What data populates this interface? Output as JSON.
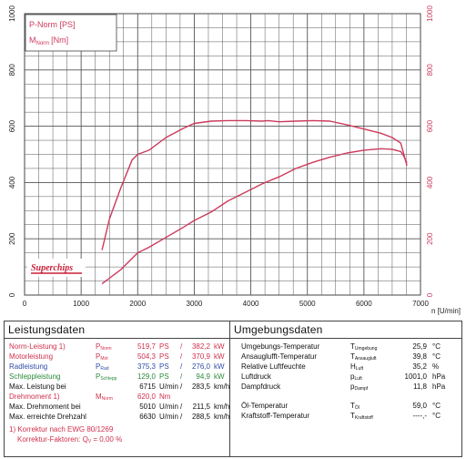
{
  "chart_data": {
    "type": "line",
    "x_unit_label": "n [U/min]",
    "xlim": [
      0,
      7000
    ],
    "x_ticks": [
      "0",
      "1000",
      "2000",
      "3000",
      "4000",
      "5000",
      "6000",
      "7000"
    ],
    "ylim_left": [
      0,
      1000
    ],
    "ylim_right": [
      0,
      1000
    ],
    "y_ticks_left": [
      "0",
      "200",
      "400",
      "600",
      "800",
      "1000"
    ],
    "y_ticks_right": [
      "0",
      "200",
      "400",
      "600",
      "800",
      "1000"
    ],
    "grid": true,
    "legend": {
      "position": "top-left",
      "items": [
        {
          "label": "P-Norm [PS]",
          "sub": ""
        },
        {
          "label": "M",
          "sub": "Norm",
          "unit": "[Nm]"
        }
      ]
    },
    "series": [
      {
        "name": "P-Norm [PS]",
        "color": "#cc3a5c",
        "axis": "left",
        "x": [
          1370,
          1500,
          1700,
          1900,
          2000,
          2200,
          2500,
          2800,
          3000,
          3300,
          3600,
          3900,
          4200,
          4500,
          4800,
          5100,
          5400,
          5700,
          6000,
          6300,
          6500,
          6650,
          6700,
          6760
        ],
        "y": [
          40,
          60,
          90,
          130,
          150,
          170,
          205,
          240,
          265,
          295,
          335,
          365,
          395,
          420,
          450,
          472,
          490,
          505,
          515,
          520,
          518,
          510,
          495,
          470
        ]
      },
      {
        "name": "M Norm [Nm]",
        "color": "#cc3a5c",
        "axis": "right",
        "x": [
          1370,
          1500,
          1700,
          1900,
          2000,
          2200,
          2500,
          2800,
          3000,
          3300,
          3600,
          3900,
          4200,
          4300,
          4500,
          4800,
          5100,
          5400,
          5700,
          6000,
          6300,
          6500,
          6650,
          6760
        ],
        "y": [
          160,
          270,
          380,
          480,
          500,
          515,
          560,
          592,
          610,
          618,
          620,
          620,
          618,
          620,
          616,
          618,
          620,
          618,
          605,
          590,
          575,
          560,
          540,
          460
        ]
      }
    ]
  },
  "logo_text": "Superchips",
  "leistungsdaten": {
    "title": "Leistungsdaten",
    "rows": [
      {
        "label": "Norm-Leistung",
        "note": "1)",
        "sym": "P",
        "sub": "Norm",
        "v1": "519,7",
        "u1": "PS",
        "sep": "/",
        "v2": "382,2",
        "u2": "kW",
        "color": "#d0304c"
      },
      {
        "label": "Motorleistung",
        "note": "",
        "sym": "P",
        "sub": "Mot",
        "v1": "504,3",
        "u1": "PS",
        "sep": "/",
        "v2": "370,9",
        "u2": "kW",
        "color": "#d0304c"
      },
      {
        "label": "Radleistung",
        "note": "",
        "sym": "P",
        "sub": "Rad",
        "v1": "375,3",
        "u1": "PS",
        "sep": "/",
        "v2": "276,0",
        "u2": "kW",
        "color": "#2f4ca8"
      },
      {
        "label": "Schleppleistung",
        "note": "",
        "sym": "P",
        "sub": "Schlepp",
        "v1": "129,0",
        "u1": "PS",
        "sep": "/",
        "v2": "94,9",
        "u2": "kW",
        "color": "#2a8a3a"
      },
      {
        "label": "Max. Leistung bei",
        "note": "",
        "sym": "",
        "sub": "",
        "v1": "6715",
        "u1": "U/min",
        "sep": "/",
        "v2": "283,5",
        "u2": "km/h",
        "color": "#111111"
      },
      {
        "label": "Drehmoment",
        "note": "1)",
        "sym": "M",
        "sub": "Norm",
        "v1": "620,0",
        "u1": "Nm",
        "sep": "",
        "v2": "",
        "u2": "",
        "color": "#d0304c"
      },
      {
        "label": "Max. Drehmoment bei",
        "note": "",
        "sym": "",
        "sub": "",
        "v1": "5010",
        "u1": "U/min",
        "sep": "/",
        "v2": "211,5",
        "u2": "km/h",
        "color": "#111111"
      },
      {
        "label": "Max. erreichte Drehzahl",
        "note": "",
        "sym": "",
        "sub": "",
        "v1": "6630",
        "u1": "U/min",
        "sep": "/",
        "v2": "288,5",
        "u2": "km/h",
        "color": "#111111"
      }
    ],
    "footnote1": "1) Korrektur nach EWG 80/1269",
    "footnote2_label": "Korrektur-Faktoren: Q",
    "footnote2_sub": "V",
    "footnote2_value": "= 0,00 %"
  },
  "umgebungsdaten": {
    "title": "Umgebungsdaten",
    "rows": [
      {
        "label": "Umgebungs-Temperatur",
        "sym": "T",
        "sub": "Umgebung",
        "value": "25,9",
        "unit": "°C"
      },
      {
        "label": "Ansauglufft-Temperatur",
        "sym": "T",
        "sub": "Ansaugluft",
        "value": "39,8",
        "unit": "°C"
      },
      {
        "label": "Relative Luftfeuchte",
        "sym": "H",
        "sub": "Luft",
        "value": "35,2",
        "unit": "%"
      },
      {
        "label": "Luftdruck",
        "sym": "p",
        "sub": "Luft",
        "value": "1001,0",
        "unit": "hPa"
      },
      {
        "label": "Dampfdruck",
        "sym": "p",
        "sub": "Dampf",
        "value": "11,8",
        "unit": "hPa"
      },
      {
        "label": "Öl-Temperatur",
        "sym": "T",
        "sub": "Öl",
        "value": "59,0",
        "unit": "°C"
      },
      {
        "label": "Kraftstoff-Temperatur",
        "sym": "T",
        "sub": "Kraftstoff",
        "value": "----,-",
        "unit": "°C"
      }
    ]
  }
}
